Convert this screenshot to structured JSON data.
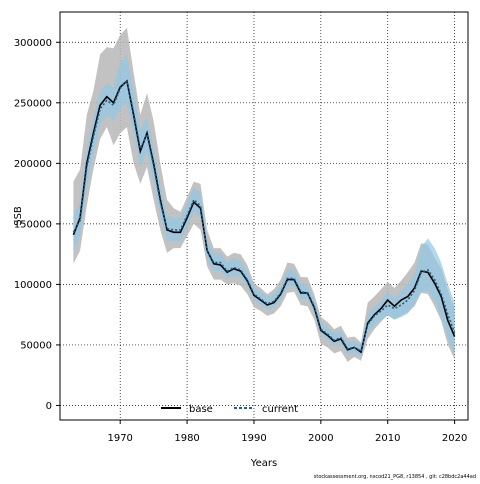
{
  "chart_data": {
    "type": "line",
    "xlabel": "Years",
    "ylabel": "SSB",
    "xlim": [
      1961,
      2022
    ],
    "ylim": [
      -12000,
      325000
    ],
    "x_ticks": [
      1970,
      1980,
      1990,
      2000,
      2010,
      2020
    ],
    "y_ticks": [
      0,
      50000,
      100000,
      150000,
      200000,
      250000,
      300000
    ],
    "grid": true,
    "legend_position": "bottom-center",
    "footer": "stockassessment.org,  nscod21_PG8,  r13854 ,  git:  c28bdc2a44ad",
    "colors": {
      "base_band": "#b7b7b7",
      "base_line": "#000000",
      "current_band": "#90c8e4",
      "current_line": "#1f5f8a"
    },
    "x": [
      1963,
      1964,
      1965,
      1966,
      1967,
      1968,
      1969,
      1970,
      1971,
      1972,
      1973,
      1974,
      1975,
      1976,
      1977,
      1978,
      1979,
      1980,
      1981,
      1982,
      1983,
      1984,
      1985,
      1986,
      1987,
      1988,
      1989,
      1990,
      1991,
      1992,
      1993,
      1994,
      1995,
      1996,
      1997,
      1998,
      1999,
      2000,
      2001,
      2002,
      2003,
      2004,
      2005,
      2006,
      2007,
      2008,
      2009,
      2010,
      2011,
      2012,
      2013,
      2014,
      2015,
      2016,
      2017,
      2018,
      2019,
      2020
    ],
    "series": [
      {
        "name": "base",
        "values": [
          141000,
          155000,
          200000,
          225000,
          248000,
          255000,
          250000,
          263000,
          268000,
          240000,
          210000,
          225000,
          200000,
          170000,
          145000,
          143000,
          143000,
          155000,
          168000,
          163000,
          128000,
          117000,
          116000,
          110000,
          113000,
          111000,
          103000,
          91000,
          87000,
          83000,
          85000,
          92000,
          104000,
          104000,
          93000,
          93000,
          81000,
          62000,
          58000,
          53000,
          55000,
          46000,
          48000,
          44000,
          68000,
          75000,
          80000,
          87000,
          82000,
          87000,
          90000,
          97000,
          111000,
          110000,
          101000,
          90000,
          70000,
          57000
        ],
        "lower": [
          117000,
          128000,
          165000,
          195000,
          220000,
          230000,
          215000,
          225000,
          230000,
          200000,
          183000,
          197000,
          170000,
          145000,
          126000,
          130000,
          130000,
          140000,
          150000,
          145000,
          115000,
          104000,
          104000,
          100000,
          101000,
          99000,
          92000,
          81000,
          78000,
          74000,
          76000,
          82000,
          93000,
          94000,
          83000,
          82000,
          71000,
          51000,
          48000,
          43000,
          45000,
          36000,
          40000,
          37000,
          55000,
          63000,
          69000,
          75000,
          71000,
          74000,
          77000,
          82000,
          93000,
          92000,
          82000,
          70000,
          50000,
          38000
        ],
        "upper": [
          185000,
          195000,
          240000,
          260000,
          290000,
          296000,
          295000,
          306000,
          312000,
          275000,
          240000,
          258000,
          235000,
          200000,
          170000,
          163000,
          160000,
          172000,
          185000,
          183000,
          145000,
          130000,
          130000,
          123000,
          126000,
          125000,
          116000,
          101000,
          97000,
          92000,
          96000,
          104000,
          118000,
          117000,
          106000,
          106000,
          92000,
          73000,
          69000,
          63000,
          66000,
          56000,
          57000,
          52000,
          85000,
          90000,
          96000,
          102000,
          97000,
          103000,
          110000,
          118000,
          134000,
          133000,
          122000,
          113000,
          95000,
          80000
        ]
      },
      {
        "name": "current",
        "values": [
          143000,
          153000,
          197000,
          222000,
          245000,
          252000,
          248000,
          262000,
          268000,
          242000,
          212000,
          224000,
          198000,
          168000,
          146000,
          145000,
          145000,
          157000,
          170000,
          165000,
          128000,
          118000,
          118000,
          111000,
          114000,
          112000,
          104000,
          92000,
          88000,
          84000,
          86000,
          93000,
          105000,
          105000,
          94000,
          93000,
          82000,
          63000,
          59000,
          54000,
          56000,
          47000,
          48000,
          45000,
          67000,
          74000,
          78000,
          83000,
          80000,
          83000,
          87000,
          95000,
          110000,
          112000,
          104000,
          92000,
          75000,
          60000
        ],
        "lower": [
          128000,
          140000,
          180000,
          208000,
          232000,
          240000,
          235000,
          245000,
          250000,
          225000,
          197000,
          210000,
          184000,
          156000,
          136000,
          136000,
          136000,
          147000,
          160000,
          155000,
          120000,
          111000,
          111000,
          105000,
          107000,
          106000,
          98000,
          87000,
          83000,
          79000,
          81000,
          87000,
          98000,
          99000,
          88000,
          88000,
          77000,
          58000,
          54000,
          49000,
          51000,
          42000,
          44000,
          40000,
          60000,
          67000,
          71000,
          74000,
          71000,
          73000,
          76000,
          83000,
          94000,
          95000,
          87000,
          73000,
          55000,
          42000
        ],
        "upper": [
          157000,
          167000,
          213000,
          237000,
          259000,
          266000,
          263000,
          283000,
          290000,
          259000,
          228000,
          238000,
          213000,
          181000,
          157000,
          155000,
          155000,
          167000,
          180000,
          176000,
          136000,
          126000,
          126000,
          118000,
          122000,
          119000,
          111000,
          98000,
          94000,
          90000,
          92000,
          99000,
          112000,
          112000,
          101000,
          99000,
          88000,
          69000,
          65000,
          60000,
          62000,
          52000,
          53000,
          50000,
          75000,
          82000,
          86000,
          94000,
          89000,
          95000,
          100000,
          108000,
          131000,
          138000,
          130000,
          118000,
          100000,
          85000
        ]
      }
    ]
  }
}
